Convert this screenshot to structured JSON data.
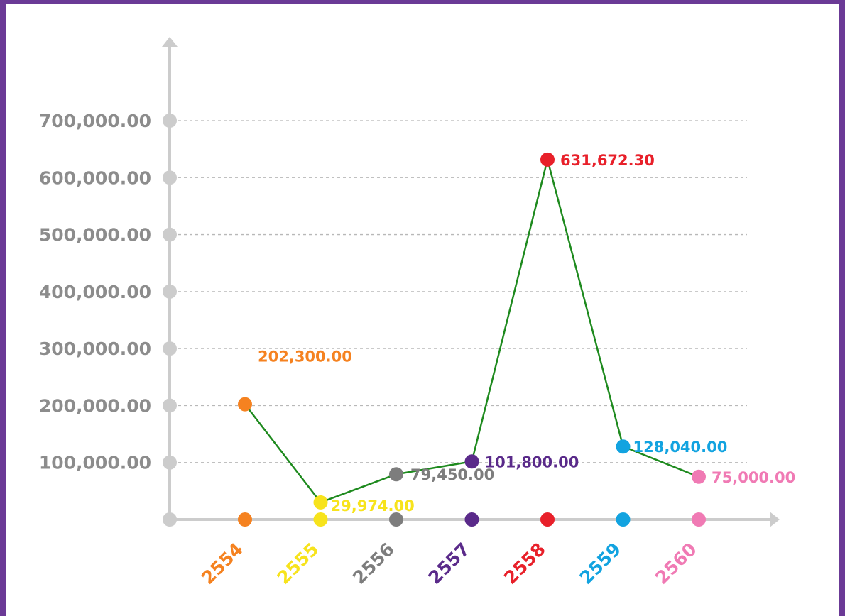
{
  "chart_data": {
    "type": "line",
    "title": "",
    "xlabel": "",
    "ylabel": "",
    "categories": [
      "2554",
      "2555",
      "2556",
      "2557",
      "2558",
      "2559",
      "2560"
    ],
    "series": [
      {
        "values": [
          202300.0,
          29974.0,
          79450.0,
          101800.0,
          631672.3,
          128040.0,
          75000.0
        ],
        "color": "#1e8a1e"
      }
    ],
    "data_labels": [
      "202,300.00",
      "29,974.00",
      "79,450.00",
      "101,800.00",
      "631,672.30",
      "128,040.00",
      "75,000.00"
    ],
    "category_colors": [
      "#f58220",
      "#f7e31c",
      "#7d7d7d",
      "#5a2a8a",
      "#e8202a",
      "#12a3e0",
      "#f07ab4"
    ],
    "y_ticks": [
      {
        "value": 100000,
        "label": "100,000.00"
      },
      {
        "value": 200000,
        "label": "200,000.00"
      },
      {
        "value": 300000,
        "label": "300,000.00"
      },
      {
        "value": 400000,
        "label": "400,000.00"
      },
      {
        "value": 500000,
        "label": "500,000.00"
      },
      {
        "value": 600000,
        "label": "600,000.00"
      },
      {
        "value": 700000,
        "label": "700,000.00"
      }
    ],
    "ylim": [
      0,
      700000
    ],
    "grid": true,
    "axis_color": "#cccccc",
    "tick_label_color": "#8c8c8c",
    "frame_color": "#6b3a96"
  }
}
